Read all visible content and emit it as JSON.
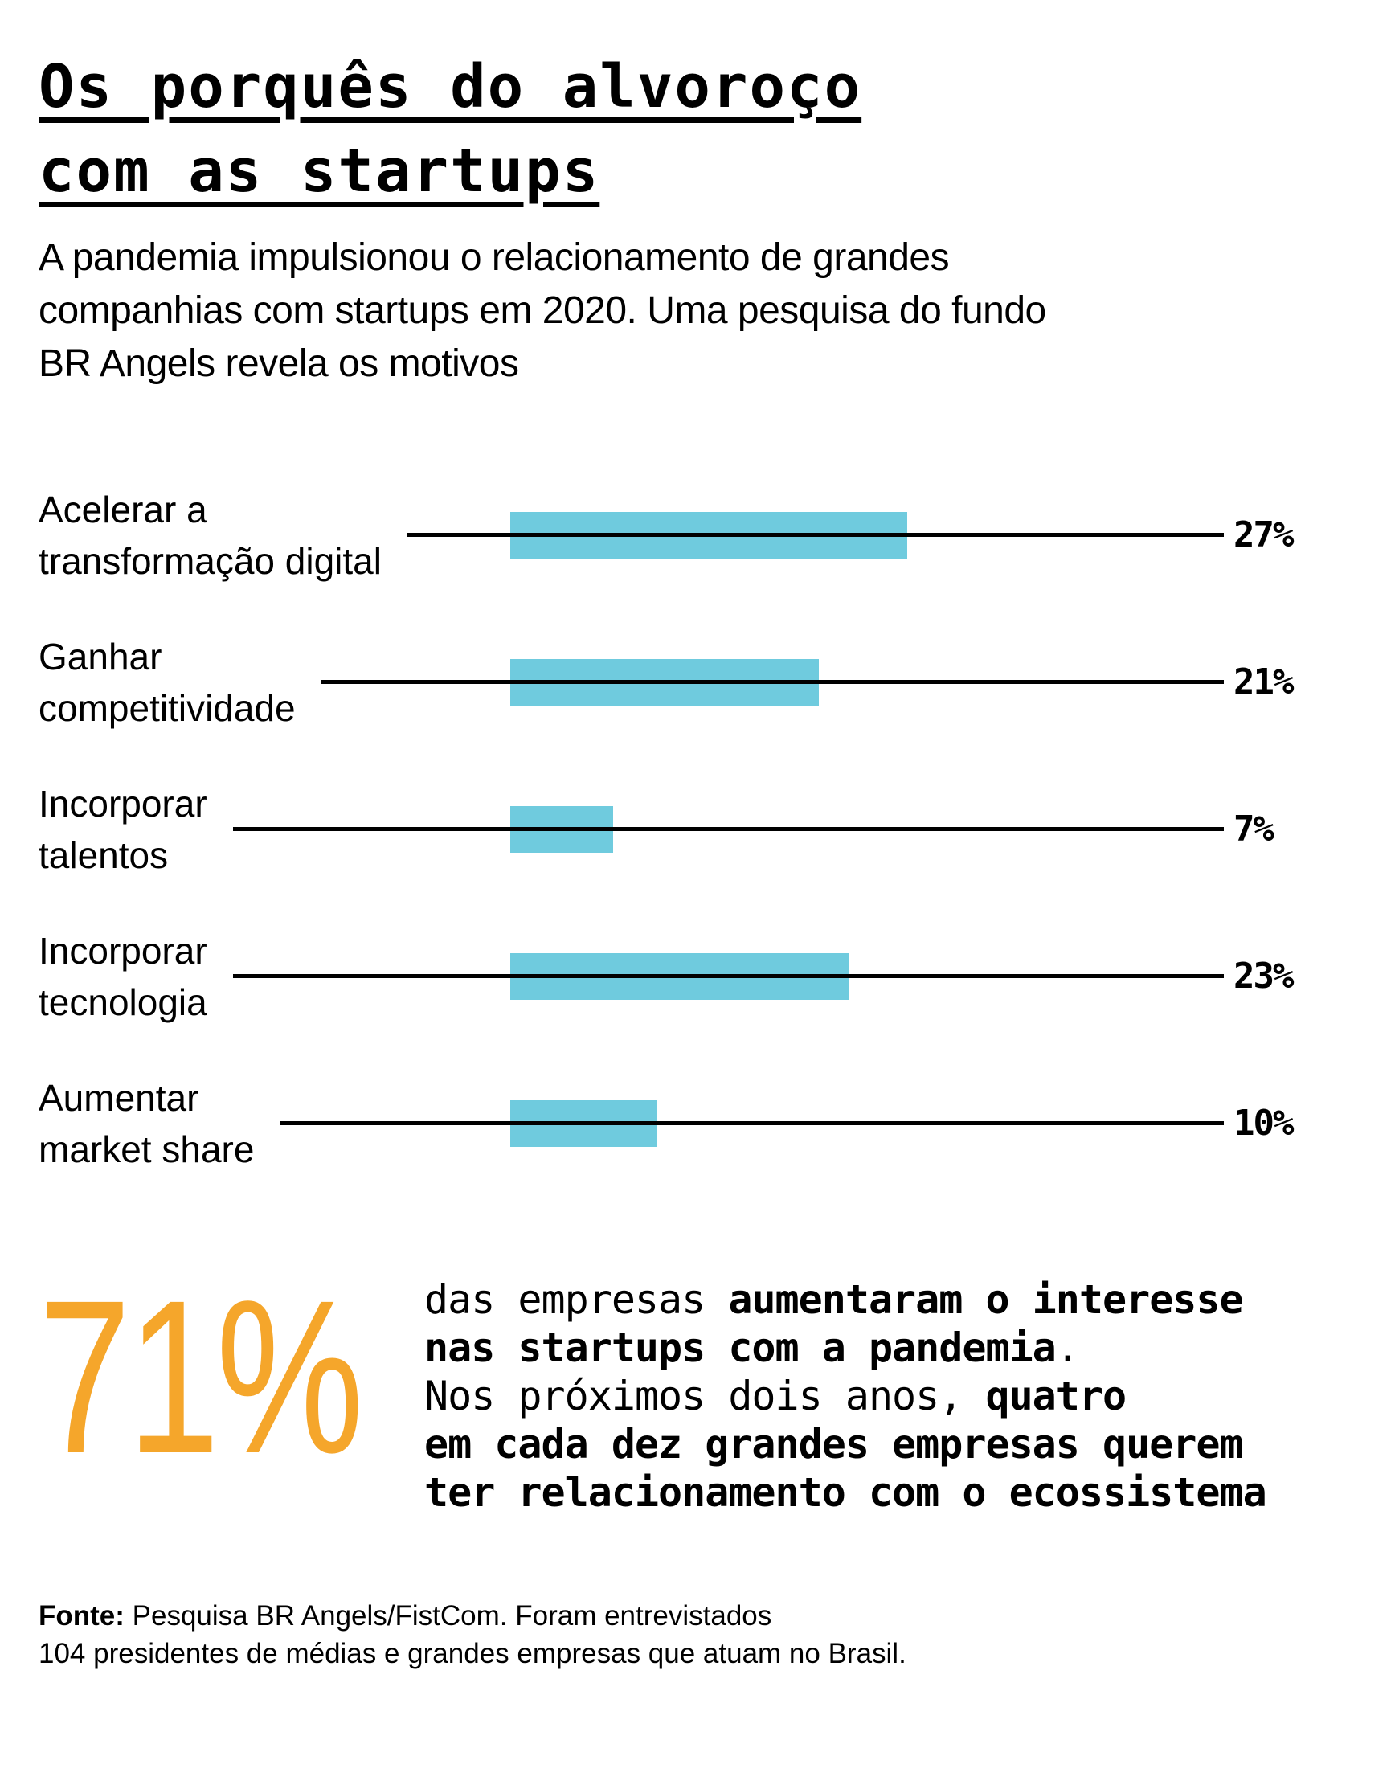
{
  "title": {
    "lines": [
      "Os porquês do alvoroço",
      "com as startups"
    ]
  },
  "subtitle": {
    "lines": [
      "A pandemia impulsionou o relacionamento de grandes",
      "companhias com startups em 2020. Uma pesquisa do fundo",
      "BR Angels revela os motivos"
    ]
  },
  "chart_data": {
    "type": "bar",
    "orientation": "horizontal",
    "unit": "%",
    "bar_color": "#6FCBDE",
    "line_color": "#000000",
    "categories": [
      [
        "Acelerar a",
        "transformação digital"
      ],
      [
        "Ganhar",
        "competitividade"
      ],
      [
        "Incorporar",
        "talentos"
      ],
      [
        "Incorporar",
        "tecnologia"
      ],
      [
        "Aumentar",
        "market share"
      ]
    ],
    "values": [
      27,
      21,
      7,
      23,
      10
    ],
    "value_labels": [
      "27%",
      "21%",
      "7%",
      "23%",
      "10%"
    ],
    "xlim": [
      0,
      30
    ],
    "grid": false,
    "legend": false
  },
  "highlight": {
    "big_number": "71%",
    "color": "#F5A62B",
    "lines": [
      [
        {
          "t": "das empresas ",
          "b": 0
        },
        {
          "t": "aumentaram o interesse",
          "b": 1
        }
      ],
      [
        {
          "t": "nas startups com a pandemia",
          "b": 1
        },
        {
          "t": ".",
          "b": 0
        }
      ],
      [
        {
          "t": "Nos próximos dois anos, ",
          "b": 0
        },
        {
          "t": "quatro",
          "b": 1
        }
      ],
      [
        {
          "t": "em cada dez grandes empresas querem",
          "b": 1
        }
      ],
      [
        {
          "t": "ter relacionamento com o ecossistema",
          "b": 1
        }
      ]
    ]
  },
  "footer": {
    "lines": [
      [
        {
          "t": "Fonte:",
          "b": 1
        },
        {
          "t": " Pesquisa BR Angels/FistCom. Foram entrevistados",
          "b": 0
        }
      ],
      [
        {
          "t": "104 presidentes de médias e grandes empresas que atuam no Brasil.",
          "b": 0
        }
      ]
    ]
  }
}
